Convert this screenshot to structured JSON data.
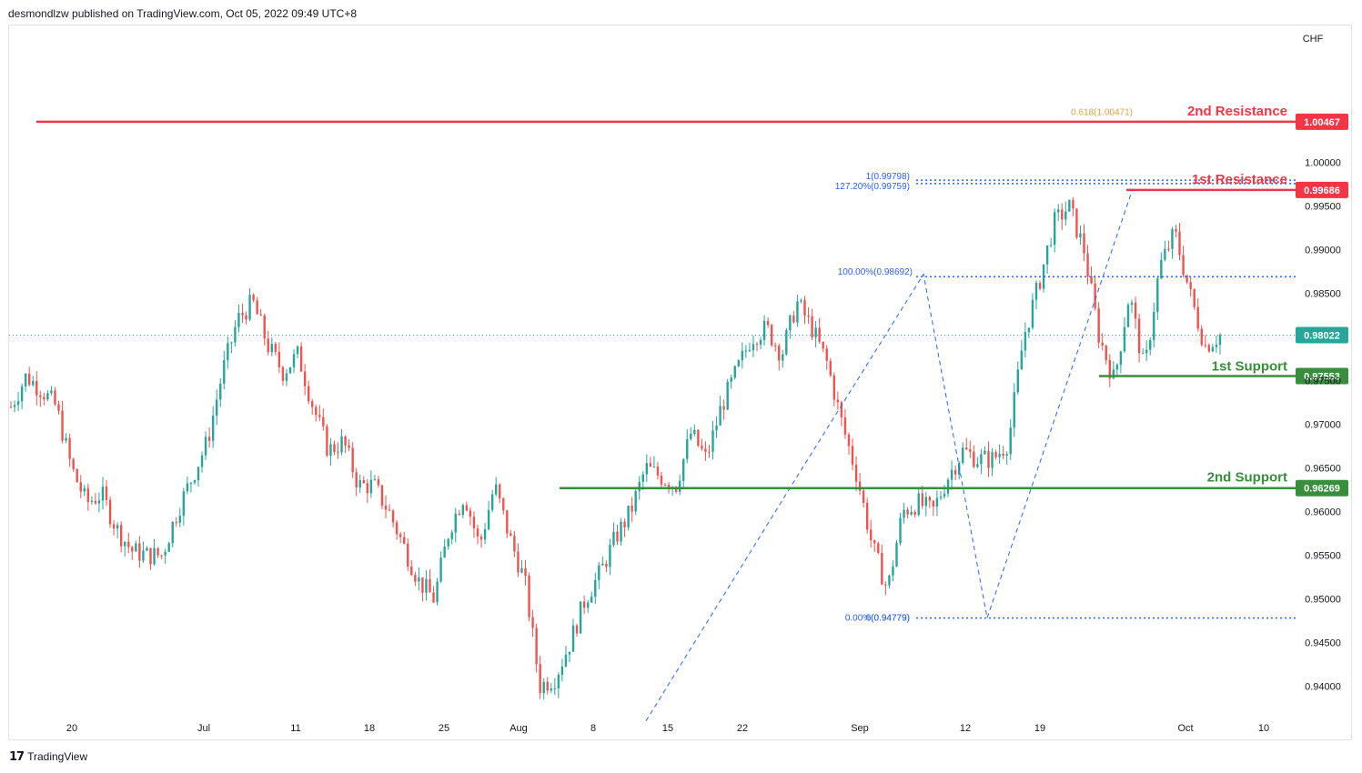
{
  "header": {
    "published": "desmondlzw published on TradingView.com, Oct 05, 2022 09:49 UTC+8"
  },
  "footer": {
    "brand": "TradingView"
  },
  "chart_data": {
    "type": "candlestick",
    "currency": "CHF",
    "ylim": [
      0.9365,
      1.0155
    ],
    "y_ticks": [
      "1.00000",
      "0.99500",
      "0.99000",
      "0.98500",
      "0.98000",
      "0.97500",
      "0.97000",
      "0.96500",
      "0.96000",
      "0.95500",
      "0.95000",
      "0.94500",
      "0.94000"
    ],
    "x_ticks": [
      "20",
      "Jul",
      "11",
      "18",
      "25",
      "Aug",
      "8",
      "15",
      "22",
      "Sep",
      "12",
      "19",
      "Oct",
      "10"
    ],
    "last_price": "0.98022",
    "levels": [
      {
        "name": "2nd Resistance",
        "price": "1.00467",
        "color": "#f23645"
      },
      {
        "name": "1st Resistance",
        "price": "0.99686",
        "color": "#f23645"
      },
      {
        "name": "1st Support",
        "price": "0.97553",
        "color": "#388e3c"
      },
      {
        "name": "2nd Support",
        "price": "0.96269",
        "color": "#388e3c"
      }
    ],
    "fib_labels": [
      {
        "text": "0.618(1.00471)",
        "price": 1.00471,
        "color": "#e0a33b"
      },
      {
        "text": "1(0.99798)",
        "price": 0.99798,
        "color": "#2962ff"
      },
      {
        "text": "127.20%(0.99759)",
        "price": 0.99759,
        "color": "#2962ff"
      },
      {
        "text": "100.00%(0.98692)",
        "price": 0.98692,
        "color": "#2962ff"
      },
      {
        "text": "0(0.94779)",
        "price": 0.94779,
        "color": "#2962ff"
      },
      {
        "text": "0.00%(0.94779)",
        "price": 0.94779,
        "color": "#2962ff"
      }
    ],
    "price_path": [
      [
        0,
        0.972
      ],
      [
        1,
        0.9755
      ],
      [
        2,
        0.974
      ],
      [
        3,
        0.972
      ],
      [
        4,
        0.965
      ],
      [
        5,
        0.961
      ],
      [
        6,
        0.962
      ],
      [
        7,
        0.958
      ],
      [
        8,
        0.9555
      ],
      [
        9,
        0.955
      ],
      [
        10,
        0.955
      ],
      [
        11,
        0.96
      ],
      [
        12,
        0.964
      ],
      [
        13,
        0.968
      ],
      [
        14,
        0.976
      ],
      [
        15,
        0.982
      ],
      [
        16,
        0.984
      ],
      [
        17,
        0.979
      ],
      [
        18,
        0.976
      ],
      [
        19,
        0.978
      ],
      [
        20,
        0.972
      ],
      [
        21,
        0.967
      ],
      [
        22,
        0.968
      ],
      [
        23,
        0.963
      ],
      [
        24,
        0.963
      ],
      [
        25,
        0.96
      ],
      [
        26,
        0.956
      ],
      [
        27,
        0.952
      ],
      [
        28,
        0.95
      ],
      [
        29,
        0.958
      ],
      [
        30,
        0.962
      ],
      [
        31,
        0.956
      ],
      [
        32,
        0.963
      ],
      [
        33,
        0.957
      ],
      [
        34,
        0.952
      ],
      [
        35,
        0.94
      ],
      [
        36,
        0.941
      ],
      [
        37,
        0.945
      ],
      [
        38,
        0.95
      ],
      [
        39,
        0.953
      ],
      [
        40,
        0.957
      ],
      [
        41,
        0.96
      ],
      [
        42,
        0.965
      ],
      [
        43,
        0.964
      ],
      [
        44,
        0.963
      ],
      [
        45,
        0.969
      ],
      [
        46,
        0.966
      ],
      [
        47,
        0.972
      ],
      [
        48,
        0.976
      ],
      [
        49,
        0.98
      ],
      [
        50,
        0.981
      ],
      [
        51,
        0.978
      ],
      [
        52,
        0.984
      ],
      [
        53,
        0.981
      ],
      [
        54,
        0.977
      ],
      [
        55,
        0.97
      ],
      [
        56,
        0.964
      ],
      [
        57,
        0.956
      ],
      [
        58,
        0.951
      ],
      [
        59,
        0.96
      ],
      [
        60,
        0.961
      ],
      [
        61,
        0.96
      ],
      [
        62,
        0.964
      ],
      [
        63,
        0.967
      ],
      [
        64,
        0.966
      ],
      [
        65,
        0.966
      ],
      [
        66,
        0.968
      ],
      [
        67,
        0.98
      ],
      [
        68,
        0.986
      ],
      [
        69,
        0.993
      ],
      [
        70,
        0.995
      ],
      [
        71,
        0.99
      ],
      [
        72,
        0.98
      ],
      [
        73,
        0.975
      ],
      [
        74,
        0.985
      ],
      [
        75,
        0.976
      ],
      [
        76,
        0.988
      ],
      [
        77,
        0.992
      ],
      [
        78,
        0.985
      ],
      [
        79,
        0.979
      ],
      [
        80,
        0.9802
      ]
    ]
  }
}
